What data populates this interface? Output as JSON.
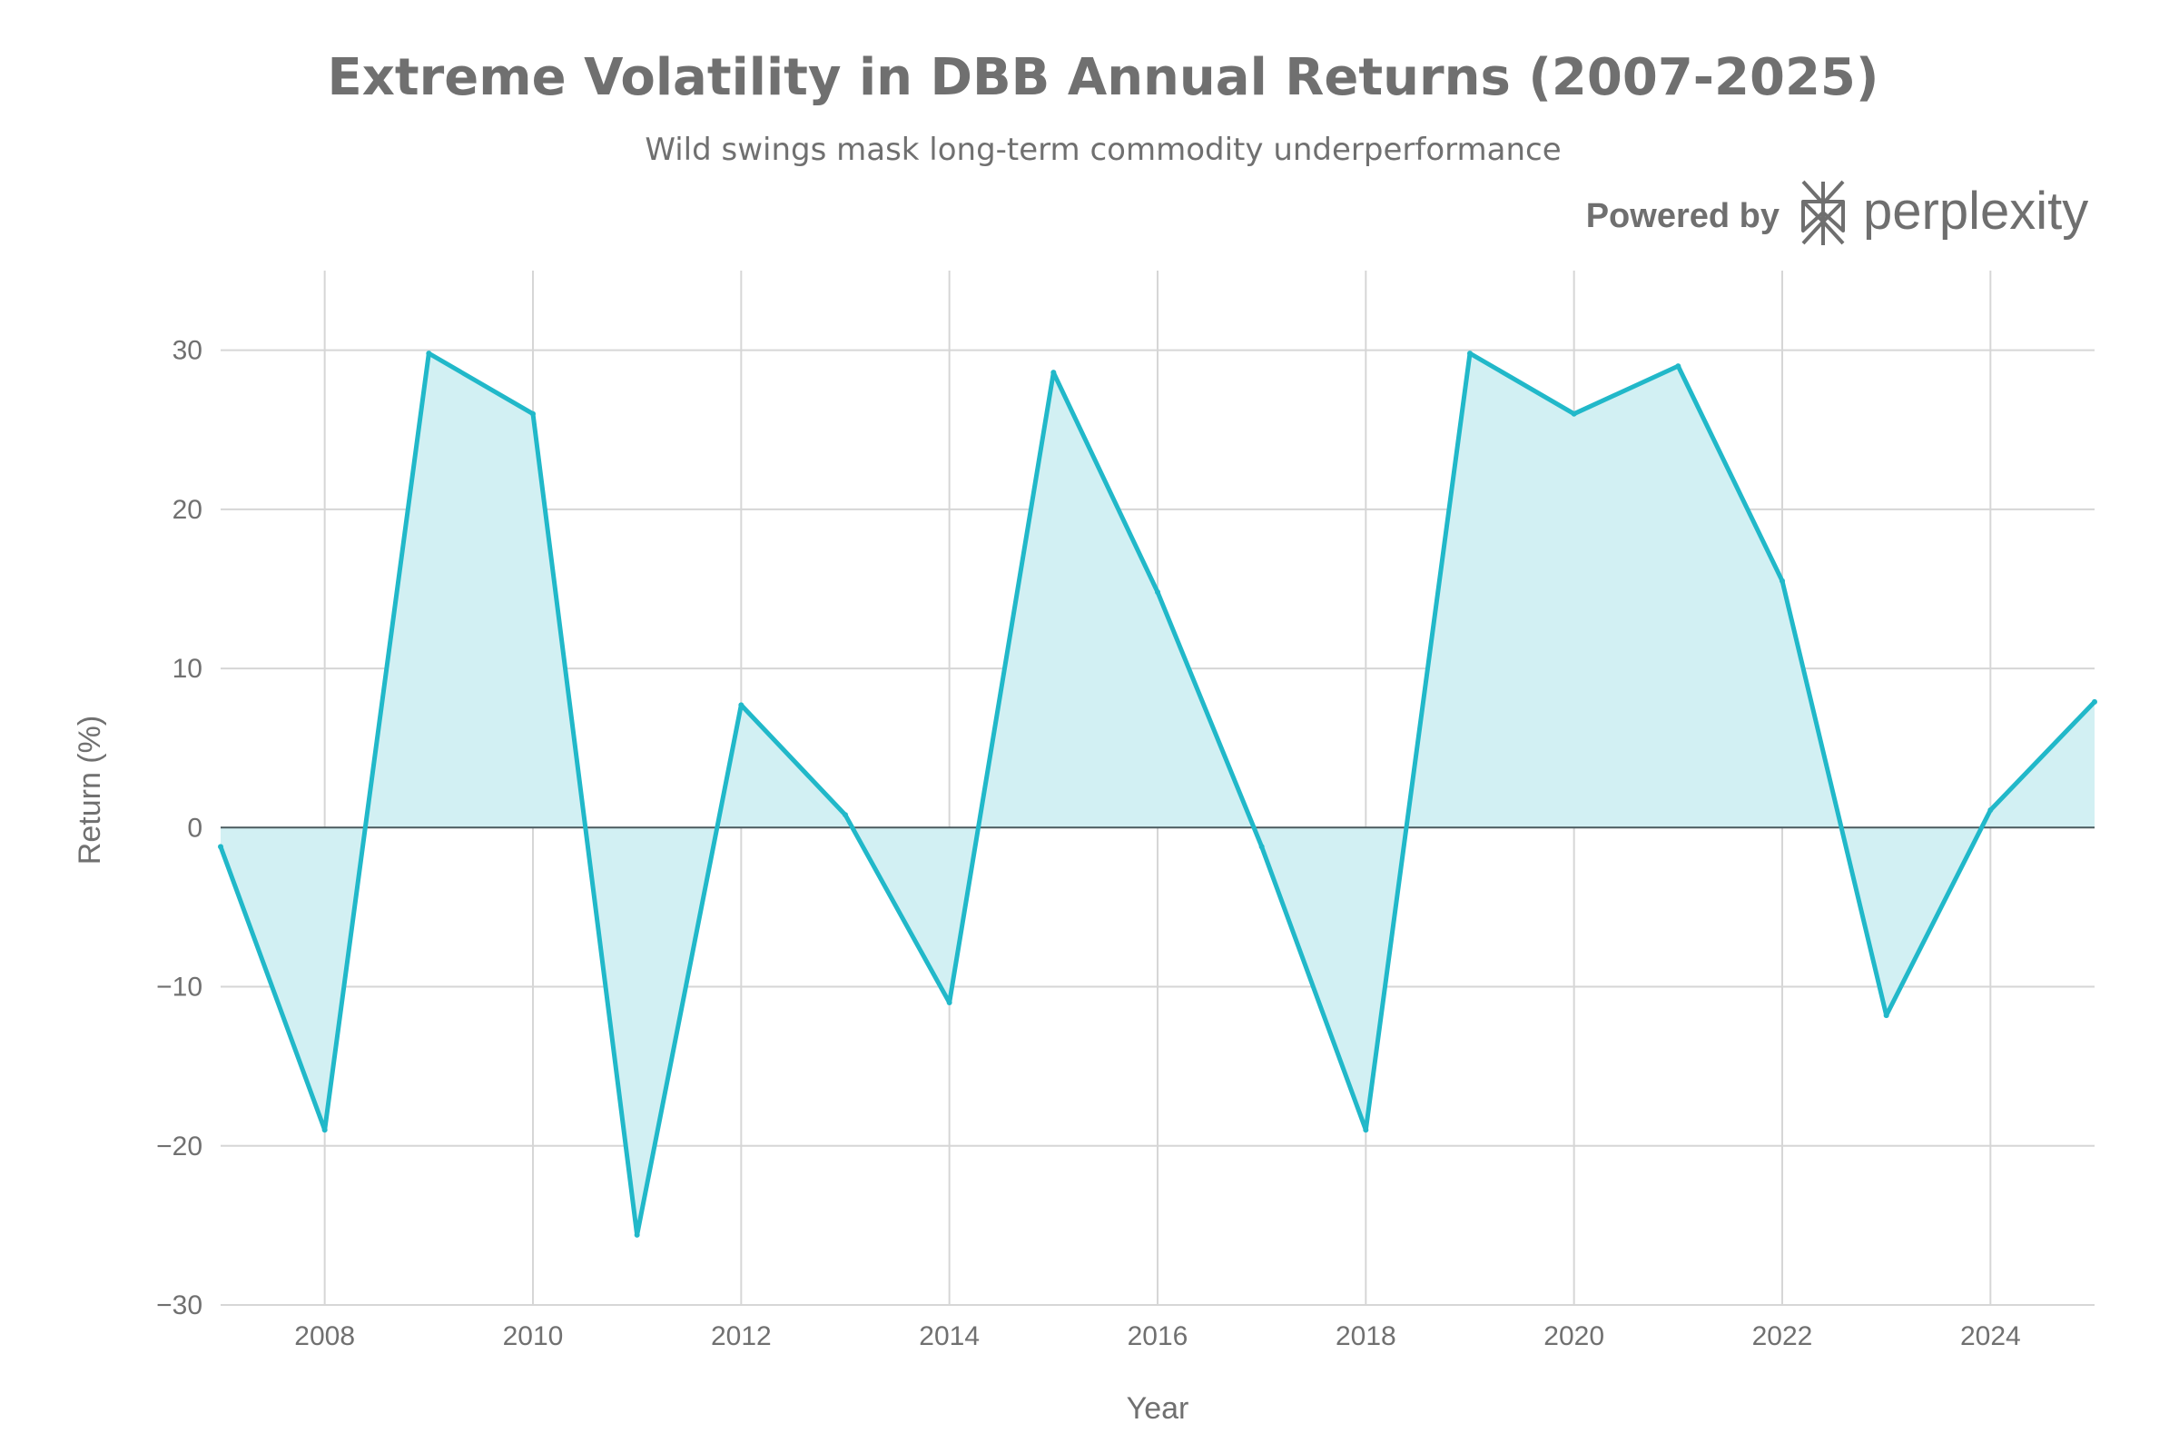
{
  "colors": {
    "line": "#21b8c9",
    "fill": "#d2f0f3",
    "text": "#707070",
    "grid": "#d6d6d6",
    "zero_line": "#4a5a5e"
  },
  "branding": {
    "powered_by": "Powered by",
    "brand_name": "perplexity",
    "logo_icon": "perplexity-logo-icon"
  },
  "chart_data": {
    "type": "area",
    "title": "Extreme Volatility in DBB Annual Returns (2007-2025)",
    "subtitle": "Wild swings mask long-term commodity underperformance",
    "xlabel": "Year",
    "ylabel": "Return (%)",
    "x": [
      2007,
      2008,
      2009,
      2010,
      2011,
      2012,
      2013,
      2014,
      2015,
      2016,
      2017,
      2018,
      2019,
      2020,
      2021,
      2022,
      2023,
      2024,
      2025
    ],
    "series": [
      {
        "name": "DBB Annual Return",
        "values": [
          -1.2,
          -19.0,
          29.8,
          26.0,
          -25.6,
          7.7,
          0.8,
          -11.0,
          28.6,
          14.8,
          -1.2,
          -19.0,
          29.8,
          26.0,
          29.0,
          15.5,
          -11.8,
          1.1,
          7.9
        ]
      }
    ],
    "xlim": [
      2007,
      2025
    ],
    "ylim": [
      -30,
      35
    ],
    "x_ticks": [
      2008,
      2010,
      2012,
      2014,
      2016,
      2018,
      2020,
      2022,
      2024
    ],
    "x_tick_labels": [
      "2008",
      "2010",
      "2012",
      "2014",
      "2016",
      "2018",
      "2020",
      "2022",
      "2024"
    ],
    "y_ticks": [
      -30,
      -20,
      -10,
      0,
      10,
      20,
      30
    ],
    "y_tick_labels": [
      "−30",
      "−20",
      "−10",
      "0",
      "10",
      "20",
      "30"
    ],
    "grid": true,
    "legend": "none"
  }
}
